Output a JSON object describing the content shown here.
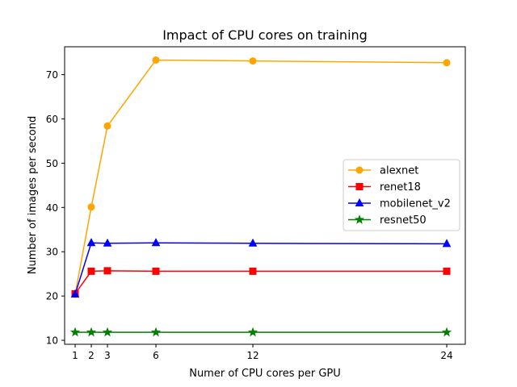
{
  "chart_data": {
    "type": "line",
    "title": "Impact of CPU cores on training",
    "xlabel": "Numer of CPU cores per GPU",
    "ylabel": "Number of images per second",
    "x": [
      1,
      2,
      3,
      6,
      12,
      24
    ],
    "x_ticks": [
      1,
      2,
      3,
      6,
      12,
      24
    ],
    "y_ticks": [
      10,
      20,
      30,
      40,
      50,
      60,
      70
    ],
    "xlim": [
      0.35,
      25.15
    ],
    "ylim": [
      9.1,
      76.3
    ],
    "grid": false,
    "legend_position": "center-right",
    "series": [
      {
        "name": "alexnet",
        "color": "#ffa500",
        "marker": "circle",
        "values": [
          20.4,
          40.1,
          58.4,
          73.3,
          73.1,
          72.7
        ]
      },
      {
        "name": "renet18",
        "color": "#ff0000",
        "marker": "square",
        "values": [
          20.5,
          25.6,
          25.7,
          25.6,
          25.6,
          25.6
        ]
      },
      {
        "name": "mobilenet_v2",
        "color": "#0000ff",
        "marker": "triangle",
        "values": [
          20.4,
          32.0,
          31.9,
          32.0,
          31.9,
          31.8
        ]
      },
      {
        "name": "resnet50",
        "color": "#008000",
        "marker": "star",
        "values": [
          11.8,
          11.8,
          11.8,
          11.8,
          11.8,
          11.8
        ]
      }
    ]
  }
}
